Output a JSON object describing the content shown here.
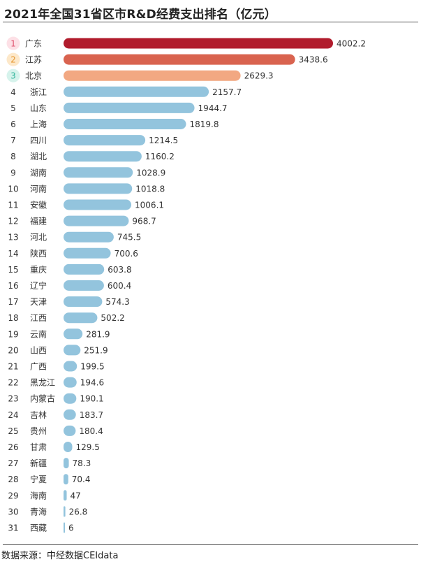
{
  "title": "2021年全国31省区市R&D经费支出排名（亿元）",
  "source": "数据来源：中经数据CEIdata",
  "colors": {
    "rank1": "#b11b2c",
    "rank2": "#d9634f",
    "rank3": "#f2a882",
    "other": "#93c4dd",
    "badge1": "#fde0e6",
    "badge2": "#fde8c9",
    "badge3": "#d6f3ec"
  },
  "chart_data": {
    "type": "bar",
    "orientation": "horizontal",
    "ranks": [
      1,
      2,
      3,
      4,
      5,
      6,
      7,
      8,
      9,
      10,
      11,
      12,
      13,
      14,
      15,
      16,
      17,
      18,
      19,
      20,
      21,
      22,
      23,
      24,
      25,
      26,
      27,
      28,
      29,
      30,
      31
    ],
    "categories": [
      "广东",
      "江苏",
      "北京",
      "浙江",
      "山东",
      "上海",
      "四川",
      "湖北",
      "湖南",
      "河南",
      "安徽",
      "福建",
      "河北",
      "陕西",
      "重庆",
      "辽宁",
      "天津",
      "江西",
      "云南",
      "山西",
      "广西",
      "黑龙江",
      "内蒙古",
      "吉林",
      "贵州",
      "甘肃",
      "新疆",
      "宁夏",
      "海南",
      "青海",
      "西藏"
    ],
    "values": [
      4002.2,
      3438.6,
      2629.3,
      2157.7,
      1944.7,
      1819.8,
      1214.5,
      1160.2,
      1028.9,
      1018.8,
      1006.1,
      968.7,
      745.5,
      700.6,
      603.8,
      600.4,
      574.3,
      502.2,
      281.9,
      251.9,
      199.5,
      194.6,
      190.1,
      183.7,
      180.4,
      129.5,
      78.3,
      70.4,
      47,
      26.8,
      6
    ],
    "value_labels": [
      "4002.2",
      "3438.6",
      "2629.3",
      "2157.7",
      "1944.7",
      "1819.8",
      "1214.5",
      "1160.2",
      "1028.9",
      "1018.8",
      "1006.1",
      "968.7",
      "745.5",
      "700.6",
      "603.8",
      "600.4",
      "574.3",
      "502.2",
      "281.9",
      "251.9",
      "199.5",
      "194.6",
      "190.1",
      "183.7",
      "180.4",
      "129.5",
      "78.3",
      "70.4",
      "47",
      "26.8",
      "6"
    ],
    "xlim": [
      0,
      4002.2
    ],
    "grid": false,
    "legend": "none"
  }
}
